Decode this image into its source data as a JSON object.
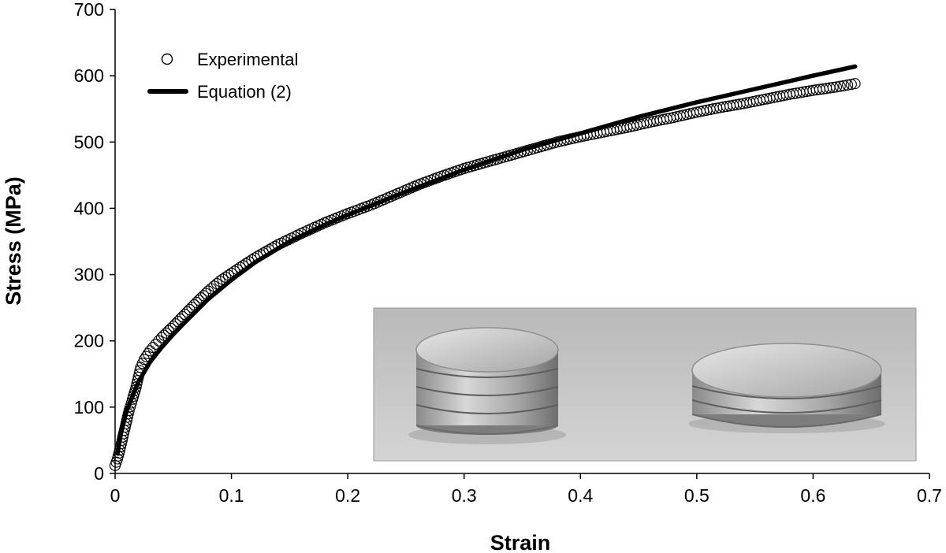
{
  "chart_data": {
    "type": "scatter",
    "title": "",
    "xlabel": "Strain",
    "ylabel": "Stress (MPa)",
    "xlim": [
      0,
      0.7
    ],
    "ylim": [
      0,
      700
    ],
    "x_ticks": [
      "0",
      "0.1",
      "0.2",
      "0.3",
      "0.4",
      "0.5",
      "0.6",
      "0.7"
    ],
    "y_ticks": [
      "0",
      "100",
      "200",
      "300",
      "400",
      "500",
      "600",
      "700"
    ],
    "grid": false,
    "legend_position": "top-left",
    "series": [
      {
        "name": "Experimental",
        "style": "open-circle-markers",
        "color": "#000000",
        "x": [
          0.0,
          0.002,
          0.004,
          0.006,
          0.008,
          0.01,
          0.012,
          0.015,
          0.018,
          0.02,
          0.022,
          0.025,
          0.03,
          0.035,
          0.04,
          0.05,
          0.06,
          0.07,
          0.08,
          0.09,
          0.1,
          0.12,
          0.14,
          0.16,
          0.18,
          0.2,
          0.22,
          0.24,
          0.26,
          0.28,
          0.3,
          0.32,
          0.34,
          0.36,
          0.38,
          0.4,
          0.42,
          0.44,
          0.46,
          0.48,
          0.5,
          0.52,
          0.54,
          0.56,
          0.58,
          0.6,
          0.62,
          0.636
        ],
        "y": [
          12,
          22,
          35,
          50,
          65,
          80,
          95,
          112,
          130,
          145,
          160,
          172,
          185,
          195,
          205,
          222,
          240,
          258,
          275,
          290,
          302,
          325,
          345,
          362,
          378,
          392,
          405,
          420,
          435,
          448,
          460,
          470,
          480,
          490,
          500,
          508,
          515,
          522,
          530,
          537,
          545,
          552,
          558,
          565,
          572,
          578,
          583,
          588
        ]
      },
      {
        "name": "Equation (2)",
        "style": "thick-line",
        "color": "#000000",
        "x": [
          0.002,
          0.005,
          0.01,
          0.02,
          0.03,
          0.04,
          0.05,
          0.06,
          0.08,
          0.1,
          0.12,
          0.15,
          0.18,
          0.2,
          0.25,
          0.3,
          0.35,
          0.4,
          0.45,
          0.5,
          0.55,
          0.6,
          0.636
        ],
        "y": [
          30,
          60,
          95,
          138,
          168,
          190,
          210,
          228,
          263,
          292,
          318,
          350,
          375,
          390,
          425,
          458,
          488,
          513,
          538,
          560,
          580,
          600,
          614
        ]
      }
    ]
  },
  "inset_photo": {
    "icon": "stacked-metal-discs-photo"
  }
}
